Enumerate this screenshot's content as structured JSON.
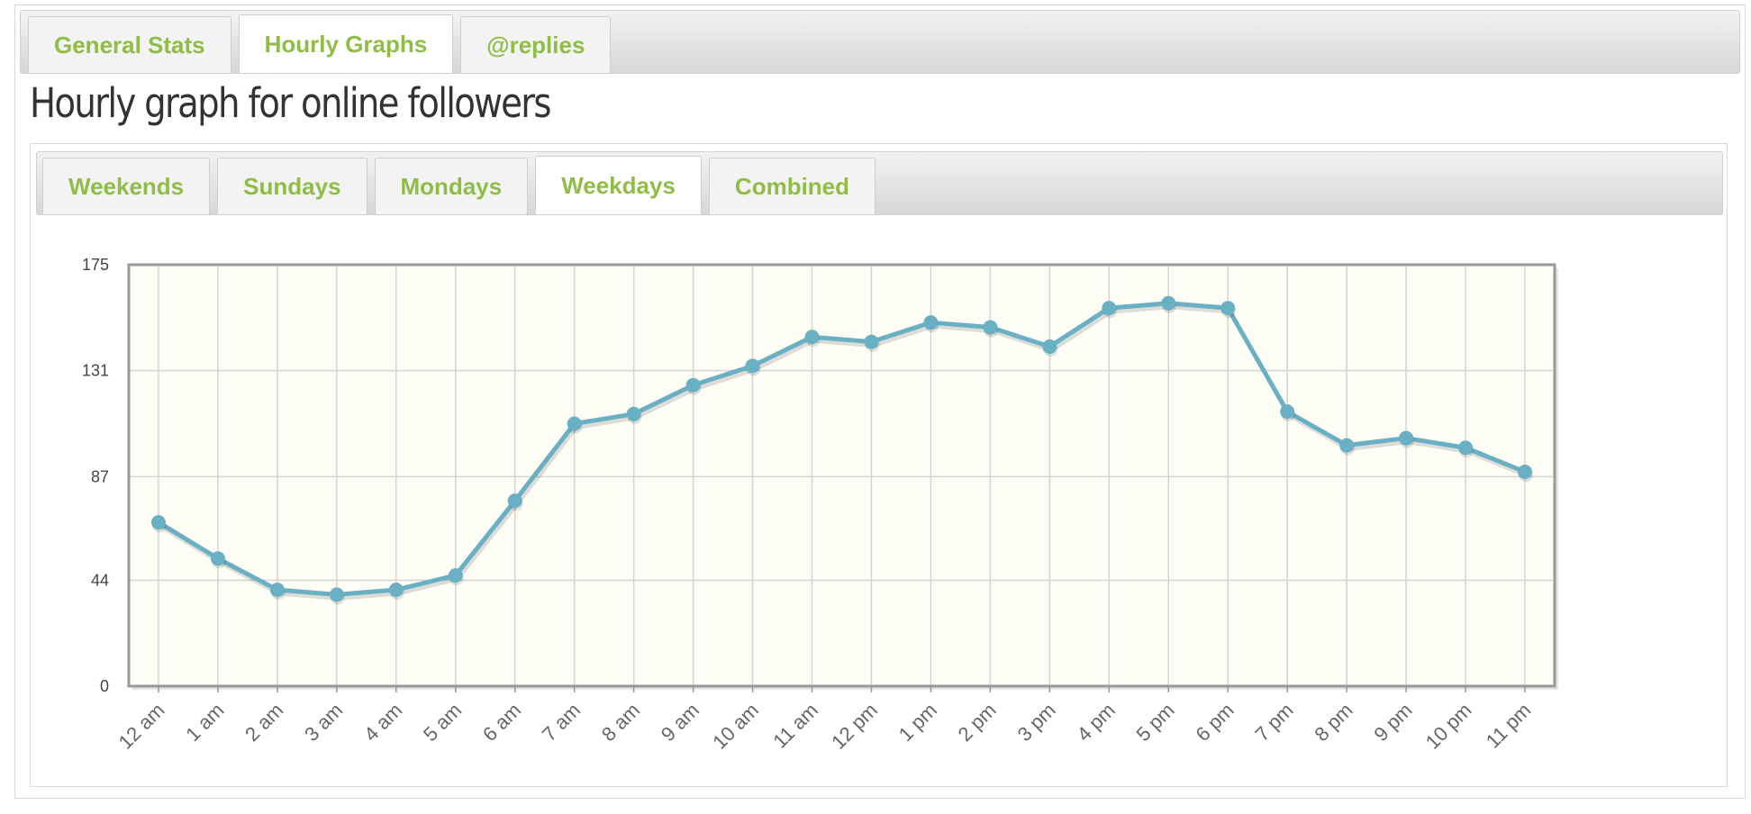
{
  "tabs": [
    {
      "label": "General Stats",
      "active": false
    },
    {
      "label": "Hourly Graphs",
      "active": true
    },
    {
      "label": "@replies",
      "active": false
    }
  ],
  "page_title": "Hourly graph for online followers",
  "sub_tabs": [
    {
      "label": "Weekends",
      "active": false
    },
    {
      "label": "Sundays",
      "active": false
    },
    {
      "label": "Mondays",
      "active": false
    },
    {
      "label": "Weekdays",
      "active": true
    },
    {
      "label": "Combined",
      "active": false
    }
  ],
  "colors": {
    "accent_text": "#8fbd45",
    "series_line": "#6ab0c5",
    "plot_background": "#fefdf6",
    "grid": "#d4d4d4",
    "axis": "#999999"
  },
  "chart_data": {
    "type": "line",
    "title": "",
    "xlabel": "",
    "ylabel": "",
    "categories": [
      "12 am",
      "1 am",
      "2 am",
      "3 am",
      "4 am",
      "5 am",
      "6 am",
      "7 am",
      "8 am",
      "9 am",
      "10 am",
      "11 am",
      "12 pm",
      "1 pm",
      "2 pm",
      "3 pm",
      "4 pm",
      "5 pm",
      "6 pm",
      "7 pm",
      "8 pm",
      "9 pm",
      "10 pm",
      "11 pm"
    ],
    "series": [
      {
        "values": [
          68,
          53,
          40,
          38,
          40,
          46,
          77,
          109,
          113,
          125,
          133,
          145,
          143,
          151,
          149,
          141,
          157,
          159,
          157,
          114,
          100,
          103,
          99,
          89
        ]
      }
    ],
    "yticks": [
      0,
      44,
      87,
      131,
      175
    ],
    "ylim": [
      0,
      175
    ],
    "grid": true,
    "legend": "none",
    "x_tick_rotation": -45
  }
}
